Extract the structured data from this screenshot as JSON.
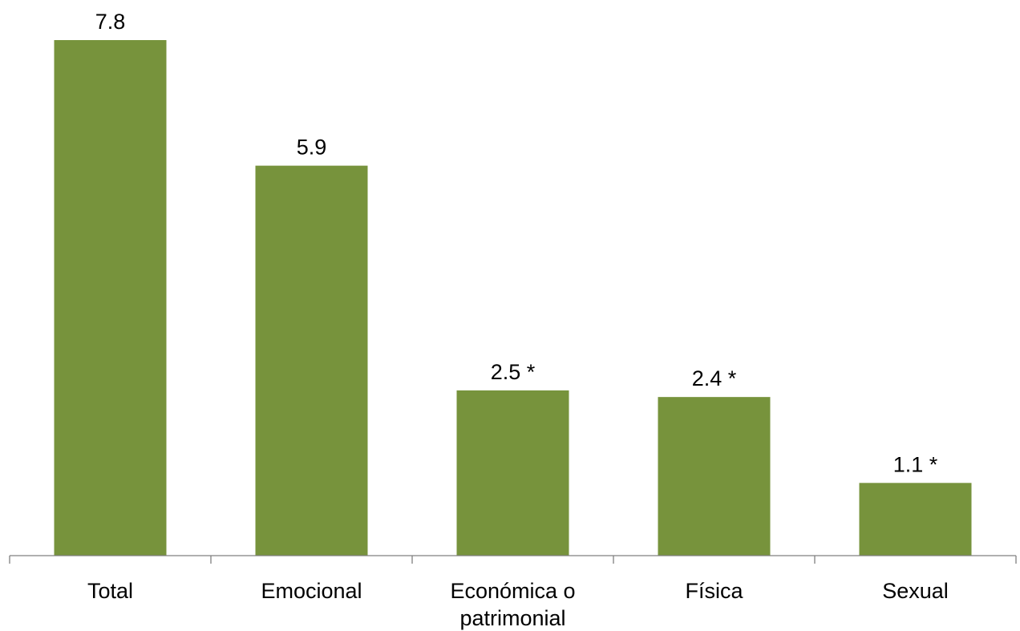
{
  "chart_data": {
    "type": "bar",
    "categories": [
      "Total",
      "Emocional",
      "Económica o patrimonial",
      "Física",
      "Sexual"
    ],
    "category_lines": [
      [
        "Total"
      ],
      [
        "Emocional"
      ],
      [
        "Económica o",
        "patrimonial"
      ],
      [
        "Física"
      ],
      [
        "Sexual"
      ]
    ],
    "values": [
      7.8,
      5.9,
      2.5,
      2.4,
      1.1
    ],
    "value_labels": [
      "7.8",
      "5.9",
      "2.5 *",
      "2.4 *",
      "1.1 *"
    ],
    "ylim": [
      0,
      7.8
    ],
    "grid": false,
    "legend": "none",
    "bar_color": "#77933c",
    "axis_color": "#808080"
  }
}
